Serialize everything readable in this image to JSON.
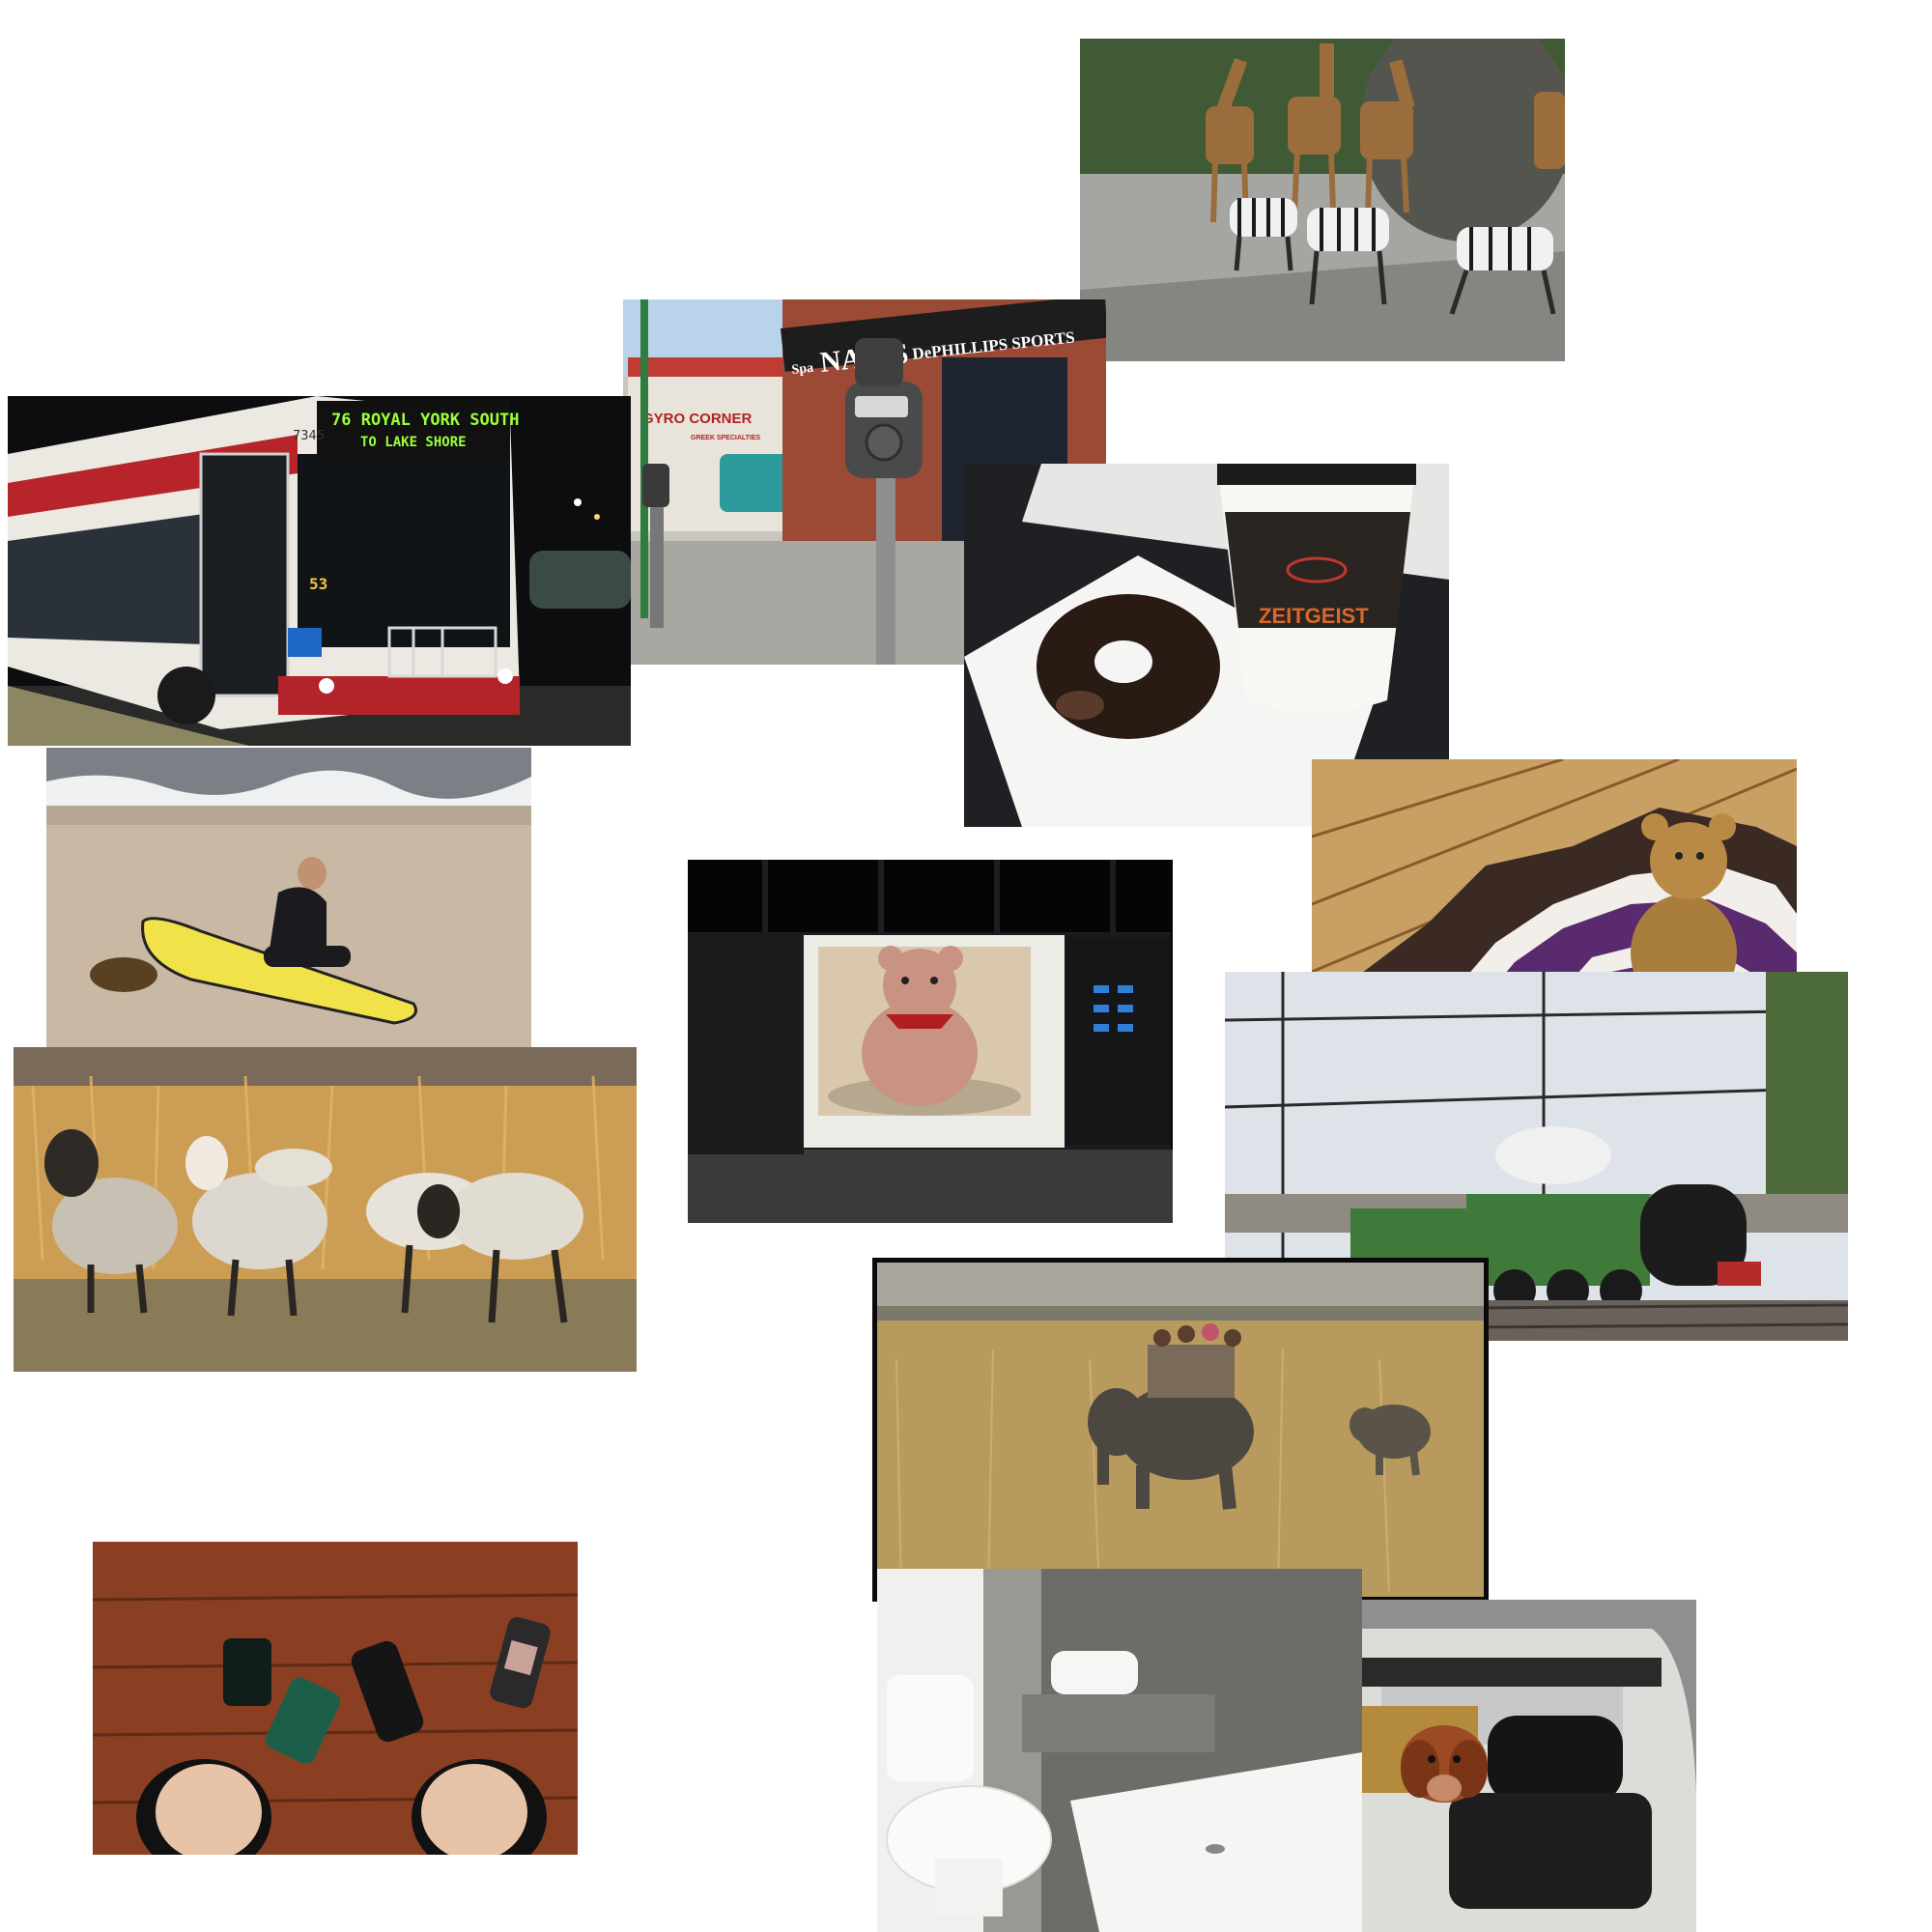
{
  "collage": {
    "photos": [
      {
        "name": "zoo-giraffes-zebras",
        "subject": "giraffes and zebras"
      },
      {
        "name": "storefront-parking-meter",
        "subject": "parking meter",
        "sign_nails": "NAILS",
        "sign_spa": "Spa",
        "sign_dephillips": "DePHILLIPS SPORTS",
        "sign_gyro": "GYRO CORNER",
        "sign_greek": "GREEK SPECIALTIES"
      },
      {
        "name": "city-bus-night",
        "subject": "bus",
        "destination_line1": "76 ROYAL YORK SOUTH",
        "destination_line2": "TO LAKE SHORE",
        "fleet_number": "7345",
        "side_route": "53"
      },
      {
        "name": "donut-coffee",
        "subject": "donut and coffee",
        "cup_brand": "ZEITGEIST"
      },
      {
        "name": "beach-surfboard",
        "subject": "surfboard"
      },
      {
        "name": "microwave-teddy",
        "subject": "teddy bear in microwave"
      },
      {
        "name": "teddy-crochet-rug",
        "subject": "teddy bear on rug"
      },
      {
        "name": "sheep-field",
        "subject": "sheep"
      },
      {
        "name": "steam-train",
        "subject": "train"
      },
      {
        "name": "elephant-safari",
        "subject": "elephants"
      },
      {
        "name": "feet-phones",
        "subject": "cell phones"
      },
      {
        "name": "bathroom-toilet",
        "subject": "toilet"
      },
      {
        "name": "dog-convertible",
        "subject": "dog in car"
      }
    ]
  },
  "colors": {
    "background": "#ffffff",
    "surfboard": "#f2e24a",
    "train_green": "#3f7a3a",
    "rug_purple": "#5a2a6e"
  }
}
